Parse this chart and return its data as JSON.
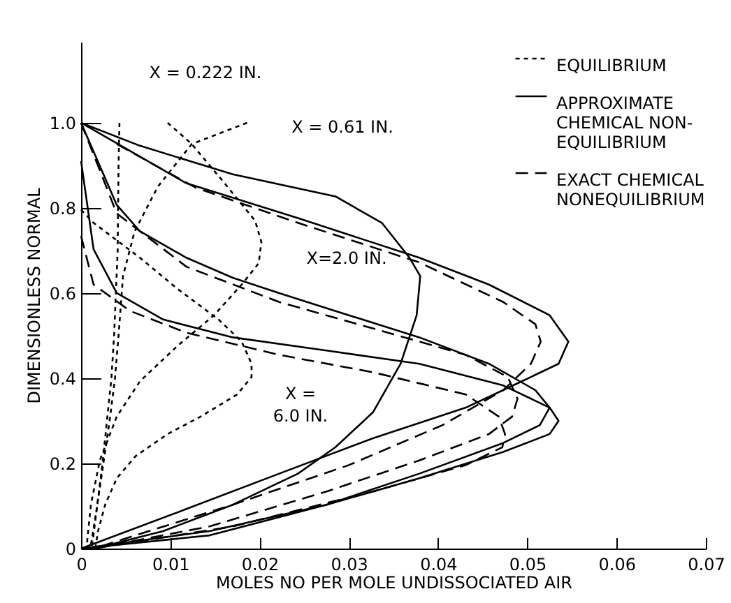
{
  "chart_data": {
    "type": "line",
    "xlabel": "MOLES NO PER MOLE UNDISSOCIATED AIR",
    "ylabel": "DIMENSIONLESS NORMAL",
    "xlim": [
      0,
      0.07
    ],
    "xticks": [
      0,
      0.01,
      0.02,
      0.03,
      0.04,
      0.05,
      0.06,
      0.07
    ],
    "ylim": [
      0,
      1.19
    ],
    "yticks": [
      0,
      0.2,
      0.4,
      0.6,
      0.8,
      {
        "value": 1,
        "label": "1.0"
      }
    ],
    "grid": false,
    "legend": "top right",
    "marker": "none",
    "series": [
      {
        "name": "EQUILIBRIUM",
        "color": "#000000",
        "line_style": "dotted",
        "x": [
          0.0043,
          0.0042,
          0.0041,
          0.0039,
          0.0037,
          0.0034,
          0.0029,
          0.0024,
          0.0018,
          0.0012,
          0.001
        ],
        "values": [
          1.0,
          0.9,
          0.7,
          0.6,
          0.5,
          0.4,
          0.3,
          0.2,
          0.1,
          0.02,
          0
        ]
      },
      {
        "name": "APPROXIMATE\nCHEMICAL NON-\nEQUILIBRIUM",
        "color": "#000000",
        "line_style": "solid",
        "x": [
          0,
          0.0066,
          0.017,
          0.0285,
          0.0337,
          0.0368,
          0.038,
          0.0376,
          0.0358,
          0.0327,
          0.0285,
          0.0243,
          0.017,
          0.0092,
          0.0024,
          0
        ],
        "values": [
          1.0,
          0.946,
          0.879,
          0.827,
          0.765,
          0.683,
          0.64,
          0.548,
          0.434,
          0.32,
          0.238,
          0.176,
          0.103,
          0.041,
          0.005,
          0
        ]
      },
      {
        "color": "#000000",
        "line_style": "dotted",
        "x": [
          0.0186,
          0.0124,
          0.0086,
          0.006,
          0.0047,
          0.0042,
          0.0038,
          0.0032,
          0.0025,
          0.0018,
          0.0012
        ],
        "values": [
          1.0,
          0.95,
          0.85,
          0.745,
          0.64,
          0.5,
          0.4,
          0.3,
          0.2,
          0.1,
          0
        ]
      },
      {
        "color": "#000000",
        "line_style": "solid",
        "x": [
          0,
          0.0118,
          0.0243,
          0.0379,
          0.0457,
          0.0525,
          0.0546,
          0.0535,
          0.0494,
          0.0431,
          0.0327,
          0.0222,
          0.0118,
          0
        ],
        "values": [
          1.0,
          0.858,
          0.776,
          0.683,
          0.62,
          0.548,
          0.486,
          0.434,
          0.393,
          0.331,
          0.259,
          0.176,
          0.093,
          0
        ]
      },
      {
        "name": "EXACT CHEMICAL\nNONEQUILIBRIUM",
        "color": "#000000",
        "line_style": "dashed",
        "x": [
          0.004,
          0.0128,
          0.0243,
          0.0379,
          0.0473,
          0.0509,
          0.0515,
          0.0504,
          0.0473,
          0.0405,
          0.03,
          0.017,
          0.0014
        ],
        "values": [
          0.95,
          0.848,
          0.765,
          0.672,
          0.579,
          0.527,
          0.486,
          0.434,
          0.372,
          0.29,
          0.196,
          0.103,
          0
        ]
      },
      {
        "color": "#000000",
        "line_style": "dotted",
        "x": [
          0.0097,
          0.0124,
          0.016,
          0.0195,
          0.0202,
          0.0199,
          0.018,
          0.0149,
          0.0108,
          0.0066,
          0.004,
          0.0021,
          0.0011,
          0.0006
        ],
        "values": [
          1.0,
          0.95,
          0.86,
          0.77,
          0.72,
          0.67,
          0.62,
          0.548,
          0.476,
          0.393,
          0.31,
          0.207,
          0.103,
          0
        ]
      },
      {
        "color": "#000000",
        "line_style": "solid",
        "x": [
          0,
          0.004,
          0.0066,
          0.0118,
          0.017,
          0.0222,
          0.03,
          0.0379,
          0.0457,
          0.0509,
          0.0525,
          0.0514,
          0.0473,
          0.0379,
          0.0275,
          0.0144,
          0
        ],
        "values": [
          1.0,
          0.807,
          0.745,
          0.683,
          0.636,
          0.6,
          0.548,
          0.496,
          0.434,
          0.372,
          0.331,
          0.29,
          0.248,
          0.176,
          0.103,
          0.031,
          0
        ]
      },
      {
        "color": "#000000",
        "line_style": "dashed",
        "x": [
          0,
          0.004,
          0.0118,
          0.0222,
          0.0327,
          0.0431,
          0.0478,
          0.0489,
          0.0483,
          0.0457,
          0.0379,
          0.0275,
          0.0144,
          0.0014
        ],
        "values": [
          1.0,
          0.787,
          0.662,
          0.579,
          0.517,
          0.455,
          0.403,
          0.352,
          0.31,
          0.269,
          0.207,
          0.134,
          0.052,
          0
        ]
      },
      {
        "color": "#000000",
        "line_style": "dotted",
        "x": [
          0,
          0.0014,
          0.004,
          0.0066,
          0.0108,
          0.0154,
          0.018,
          0.0191,
          0.0191,
          0.0175,
          0.0134,
          0.0097,
          0.0061,
          0.004,
          0.0027,
          0.0019,
          0.0016
        ],
        "values": [
          0.796,
          0.765,
          0.724,
          0.683,
          0.61,
          0.538,
          0.486,
          0.434,
          0.403,
          0.362,
          0.31,
          0.269,
          0.217,
          0.165,
          0.103,
          0.041,
          0
        ]
      },
      {
        "color": "#000000",
        "line_style": "solid",
        "x": [
          0,
          0.0014,
          0.004,
          0.0092,
          0.017,
          0.0275,
          0.0379,
          0.0473,
          0.0525,
          0.0535,
          0.0525,
          0.0473,
          0.0379,
          0.0275,
          0.0144,
          0
        ],
        "values": [
          0.91,
          0.703,
          0.6,
          0.538,
          0.496,
          0.465,
          0.434,
          0.383,
          0.331,
          0.3,
          0.269,
          0.227,
          0.165,
          0.103,
          0.041,
          0
        ]
      },
      {
        "color": "#000000",
        "line_style": "dashed",
        "x": [
          0,
          0.0014,
          0.0055,
          0.0118,
          0.0222,
          0.0327,
          0.0431,
          0.0468,
          0.0475,
          0.0472,
          0.0431,
          0.0327,
          0.017,
          0.0014
        ],
        "values": [
          0.734,
          0.62,
          0.558,
          0.507,
          0.455,
          0.414,
          0.362,
          0.31,
          0.269,
          0.238,
          0.196,
          0.134,
          0.052,
          0
        ]
      }
    ],
    "annotations": [
      "X = 0.222 IN.",
      "X = 0.61 IN.",
      "X=2.0 IN.",
      "X =\n6.0 IN."
    ]
  }
}
